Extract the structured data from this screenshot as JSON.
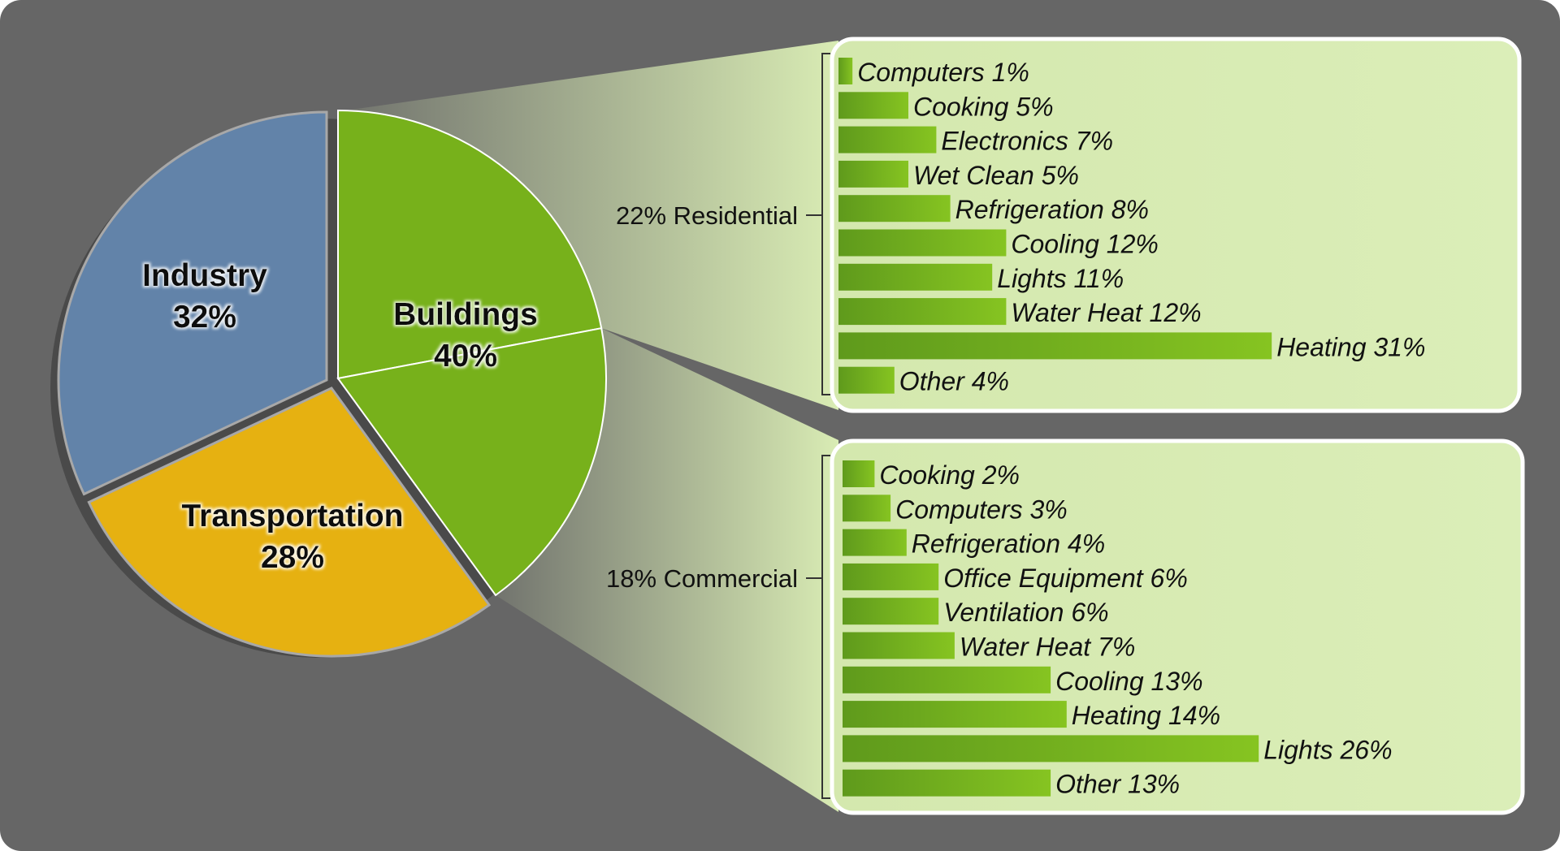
{
  "colors": {
    "background": "#666666",
    "industry": "#6283a9",
    "transportation": "#e6b111",
    "buildings": "#77b11b",
    "panel": "#d9ecb4",
    "bar_dark": "#5f9a1c",
    "bar_light": "#86c421"
  },
  "chart_data": [
    {
      "type": "pie",
      "slices": [
        {
          "key": "industry",
          "name": "Industry",
          "value_label": "32%",
          "value": 32,
          "color": "#6283a9"
        },
        {
          "key": "transportation",
          "name": "Transportation",
          "value_label": "28%",
          "value": 28,
          "color": "#e6b111"
        },
        {
          "key": "buildings",
          "name": "Buildings",
          "value_label": "40%",
          "value": 40,
          "color": "#77b11b",
          "sub_split": [
            22,
            18
          ]
        }
      ]
    },
    {
      "type": "bar",
      "group_label": "22% Residential",
      "categories": [
        "Computers",
        "Cooking",
        "Electronics",
        "Wet Clean",
        "Refrigeration",
        "Cooling",
        "Lights",
        "Water Heat",
        "Heating",
        "Other"
      ],
      "values": [
        1,
        5,
        7,
        5,
        8,
        12,
        11,
        12,
        31,
        4
      ],
      "labels": [
        "Computers 1%",
        "Cooking 5%",
        "Electronics 7%",
        "Wet Clean 5%",
        "Refrigeration 8%",
        "Cooling 12%",
        "Lights 11%",
        "Water Heat 12%",
        "Heating 31%",
        "Other 4%"
      ]
    },
    {
      "type": "bar",
      "group_label": "18% Commercial",
      "categories": [
        "Cooking",
        "Computers",
        "Refrigeration",
        "Office Equipment",
        "Ventilation",
        "Water Heat",
        "Cooling",
        "Heating",
        "Lights",
        "Other"
      ],
      "values": [
        2,
        3,
        4,
        6,
        6,
        7,
        13,
        14,
        26,
        13
      ],
      "labels": [
        "Cooking 2%",
        "Computers 3%",
        "Refrigeration 4%",
        "Office Equipment 6%",
        "Ventilation 6%",
        "Water Heat 7%",
        "Cooling 13%",
        "Heating 14%",
        "Lights 26%",
        "Other 13%"
      ]
    }
  ]
}
